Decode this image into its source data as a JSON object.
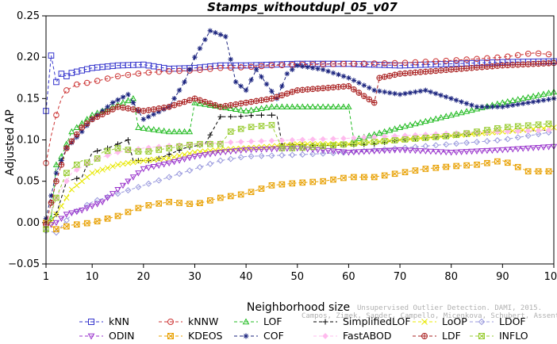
{
  "chart_data": {
    "type": "line",
    "title": "Stamps_withoutdupl_05_v07",
    "xlabel": "Neighborhood size",
    "ylabel": "Adjusted AP",
    "xlim": [
      1,
      100
    ],
    "ylim": [
      -0.05,
      0.25
    ],
    "x_ticks": [
      "1",
      "10",
      "20",
      "30",
      "40",
      "50",
      "60",
      "70",
      "80",
      "90",
      "100"
    ],
    "y_ticks": [
      "−0.05",
      "0.00",
      "0.05",
      "0.10",
      "0.15",
      "0.20",
      "0.25"
    ],
    "legend_position": "bottom",
    "watermark": [
      "Campos, Zimek, Sander, Campello, Micenkova, Schubert, Assent, Houle",
      "Unsupervised Outlier Detection. DAMI, 2015."
    ],
    "series": [
      {
        "name": "kNN",
        "color": "#3333cc",
        "marker": "square",
        "points": [
          [
            1,
            0.135
          ],
          [
            2,
            0.202
          ],
          [
            3,
            0.17
          ],
          [
            4,
            0.18
          ],
          [
            5,
            0.177
          ],
          [
            6,
            0.181
          ],
          [
            8,
            0.184
          ],
          [
            10,
            0.187
          ],
          [
            15,
            0.19
          ],
          [
            20,
            0.191
          ],
          [
            25,
            0.186
          ],
          [
            30,
            0.187
          ],
          [
            35,
            0.19
          ],
          [
            40,
            0.19
          ],
          [
            45,
            0.191
          ],
          [
            50,
            0.192
          ],
          [
            60,
            0.192
          ],
          [
            70,
            0.19
          ],
          [
            80,
            0.192
          ],
          [
            90,
            0.194
          ],
          [
            100,
            0.195
          ]
        ]
      },
      {
        "name": "kNNW",
        "color": "#cc3333",
        "marker": "circle",
        "points": [
          [
            1,
            0.072
          ],
          [
            2,
            0.105
          ],
          [
            3,
            0.13
          ],
          [
            4,
            0.15
          ],
          [
            5,
            0.16
          ],
          [
            7,
            0.167
          ],
          [
            10,
            0.17
          ],
          [
            15,
            0.177
          ],
          [
            20,
            0.181
          ],
          [
            25,
            0.183
          ],
          [
            30,
            0.184
          ],
          [
            35,
            0.187
          ],
          [
            40,
            0.188
          ],
          [
            45,
            0.19
          ],
          [
            50,
            0.191
          ],
          [
            60,
            0.192
          ],
          [
            70,
            0.193
          ],
          [
            80,
            0.196
          ],
          [
            90,
            0.2
          ],
          [
            96,
            0.205
          ],
          [
            100,
            0.203
          ]
        ]
      },
      {
        "name": "LOF",
        "color": "#22bb22",
        "marker": "triangle-up",
        "points": [
          [
            1,
            -0.003
          ],
          [
            2,
            0.005
          ],
          [
            3,
            0.07
          ],
          [
            4,
            0.08
          ],
          [
            6,
            0.11
          ],
          [
            8,
            0.12
          ],
          [
            10,
            0.13
          ],
          [
            14,
            0.14
          ],
          [
            18,
            0.15
          ],
          [
            19,
            0.115
          ],
          [
            25,
            0.11
          ],
          [
            29,
            0.11
          ],
          [
            30,
            0.145
          ],
          [
            35,
            0.14
          ],
          [
            40,
            0.135
          ],
          [
            45,
            0.14
          ],
          [
            50,
            0.14
          ],
          [
            60,
            0.14
          ],
          [
            61,
            0.1
          ],
          [
            70,
            0.115
          ],
          [
            80,
            0.13
          ],
          [
            90,
            0.145
          ],
          [
            100,
            0.158
          ]
        ]
      },
      {
        "name": "SimplifiedLOF",
        "color": "#000000",
        "marker": "plus",
        "points": [
          [
            1,
            -0.005
          ],
          [
            3,
            0.01
          ],
          [
            5,
            0.05
          ],
          [
            8,
            0.055
          ],
          [
            10,
            0.085
          ],
          [
            13,
            0.09
          ],
          [
            15,
            0.095
          ],
          [
            17,
            0.1
          ],
          [
            18,
            0.075
          ],
          [
            22,
            0.075
          ],
          [
            28,
            0.09
          ],
          [
            32,
            0.095
          ],
          [
            35,
            0.128
          ],
          [
            38,
            0.128
          ],
          [
            42,
            0.13
          ],
          [
            46,
            0.13
          ],
          [
            47,
            0.095
          ],
          [
            55,
            0.093
          ],
          [
            65,
            0.095
          ],
          [
            70,
            0.1
          ],
          [
            80,
            0.105
          ],
          [
            90,
            0.11
          ],
          [
            100,
            0.112
          ]
        ]
      },
      {
        "name": "LoOP",
        "color": "#e8e800",
        "marker": "x",
        "points": [
          [
            1,
            -0.008
          ],
          [
            3,
            0.01
          ],
          [
            6,
            0.04
          ],
          [
            10,
            0.06
          ],
          [
            15,
            0.07
          ],
          [
            20,
            0.075
          ],
          [
            25,
            0.078
          ],
          [
            30,
            0.085
          ],
          [
            35,
            0.088
          ],
          [
            40,
            0.09
          ],
          [
            45,
            0.092
          ],
          [
            50,
            0.095
          ],
          [
            60,
            0.095
          ],
          [
            70,
            0.1
          ],
          [
            80,
            0.105
          ],
          [
            90,
            0.11
          ],
          [
            100,
            0.115
          ]
        ]
      },
      {
        "name": "LDOF",
        "color": "#9999dd",
        "marker": "diamond",
        "points": [
          [
            1,
            -0.01
          ],
          [
            3,
            -0.012
          ],
          [
            6,
            0.01
          ],
          [
            10,
            0.025
          ],
          [
            15,
            0.035
          ],
          [
            20,
            0.045
          ],
          [
            25,
            0.055
          ],
          [
            30,
            0.065
          ],
          [
            35,
            0.075
          ],
          [
            40,
            0.08
          ],
          [
            50,
            0.082
          ],
          [
            60,
            0.085
          ],
          [
            70,
            0.09
          ],
          [
            80,
            0.095
          ],
          [
            90,
            0.1
          ],
          [
            100,
            0.11
          ]
        ]
      },
      {
        "name": "ODIN",
        "color": "#9933cc",
        "marker": "triangle-down",
        "points": [
          [
            1,
            -0.005
          ],
          [
            3,
            0.0
          ],
          [
            5,
            0.01
          ],
          [
            8,
            0.015
          ],
          [
            10,
            0.02
          ],
          [
            12,
            0.025
          ],
          [
            15,
            0.04
          ],
          [
            18,
            0.055
          ],
          [
            20,
            0.065
          ],
          [
            25,
            0.072
          ],
          [
            30,
            0.08
          ],
          [
            35,
            0.085
          ],
          [
            40,
            0.088
          ],
          [
            50,
            0.09
          ],
          [
            60,
            0.085
          ],
          [
            70,
            0.088
          ],
          [
            80,
            0.085
          ],
          [
            90,
            0.088
          ],
          [
            100,
            0.092
          ]
        ]
      },
      {
        "name": "KDEOS",
        "color": "#e8a000",
        "marker": "square-x",
        "points": [
          [
            1,
            0.0
          ],
          [
            3,
            -0.008
          ],
          [
            6,
            -0.003
          ],
          [
            10,
            0.0
          ],
          [
            15,
            0.008
          ],
          [
            20,
            0.02
          ],
          [
            25,
            0.025
          ],
          [
            30,
            0.022
          ],
          [
            35,
            0.03
          ],
          [
            40,
            0.035
          ],
          [
            45,
            0.045
          ],
          [
            50,
            0.048
          ],
          [
            55,
            0.05
          ],
          [
            60,
            0.055
          ],
          [
            65,
            0.055
          ],
          [
            70,
            0.06
          ],
          [
            75,
            0.065
          ],
          [
            80,
            0.068
          ],
          [
            85,
            0.07
          ],
          [
            90,
            0.075
          ],
          [
            95,
            0.062
          ],
          [
            100,
            0.062
          ]
        ]
      },
      {
        "name": "COF",
        "color": "#1a237e",
        "marker": "asterisk",
        "points": [
          [
            1,
            0.005
          ],
          [
            3,
            0.06
          ],
          [
            5,
            0.09
          ],
          [
            8,
            0.11
          ],
          [
            10,
            0.125
          ],
          [
            14,
            0.145
          ],
          [
            17,
            0.155
          ],
          [
            20,
            0.125
          ],
          [
            25,
            0.14
          ],
          [
            28,
            0.17
          ],
          [
            30,
            0.2
          ],
          [
            33,
            0.232
          ],
          [
            36,
            0.225
          ],
          [
            38,
            0.17
          ],
          [
            40,
            0.16
          ],
          [
            42,
            0.185
          ],
          [
            46,
            0.15
          ],
          [
            48,
            0.18
          ],
          [
            50,
            0.19
          ],
          [
            55,
            0.185
          ],
          [
            60,
            0.175
          ],
          [
            65,
            0.16
          ],
          [
            70,
            0.155
          ],
          [
            75,
            0.16
          ],
          [
            80,
            0.15
          ],
          [
            85,
            0.14
          ],
          [
            90,
            0.14
          ],
          [
            100,
            0.15
          ]
        ]
      },
      {
        "name": "FastABOD",
        "color": "#ffbbee",
        "marker": "diamond-filled",
        "points": [
          [
            1,
            -0.003
          ],
          [
            3,
            0.03
          ],
          [
            6,
            0.06
          ],
          [
            10,
            0.075
          ],
          [
            15,
            0.085
          ],
          [
            20,
            0.09
          ],
          [
            25,
            0.093
          ],
          [
            30,
            0.095
          ],
          [
            40,
            0.098
          ],
          [
            50,
            0.1
          ],
          [
            60,
            0.102
          ],
          [
            70,
            0.105
          ],
          [
            80,
            0.108
          ],
          [
            90,
            0.11
          ],
          [
            100,
            0.112
          ]
        ]
      },
      {
        "name": "LDF",
        "color": "#aa2222",
        "marker": "circle-plus",
        "points": [
          [
            1,
            -0.002
          ],
          [
            3,
            0.05
          ],
          [
            5,
            0.09
          ],
          [
            8,
            0.115
          ],
          [
            10,
            0.125
          ],
          [
            15,
            0.14
          ],
          [
            20,
            0.135
          ],
          [
            25,
            0.14
          ],
          [
            30,
            0.15
          ],
          [
            35,
            0.14
          ],
          [
            40,
            0.145
          ],
          [
            45,
            0.15
          ],
          [
            50,
            0.16
          ],
          [
            60,
            0.165
          ],
          [
            65,
            0.145
          ],
          [
            66,
            0.175
          ],
          [
            70,
            0.18
          ],
          [
            80,
            0.185
          ],
          [
            90,
            0.19
          ],
          [
            100,
            0.193
          ]
        ]
      },
      {
        "name": "INFLO",
        "color": "#99cc33",
        "marker": "square-x",
        "points": [
          [
            1,
            -0.008
          ],
          [
            3,
            0.03
          ],
          [
            5,
            0.06
          ],
          [
            8,
            0.075
          ],
          [
            10,
            0.07
          ],
          [
            12,
            0.085
          ],
          [
            15,
            0.09
          ],
          [
            20,
            0.085
          ],
          [
            25,
            0.09
          ],
          [
            30,
            0.095
          ],
          [
            35,
            0.095
          ],
          [
            37,
            0.11
          ],
          [
            40,
            0.115
          ],
          [
            45,
            0.118
          ],
          [
            47,
            0.09
          ],
          [
            50,
            0.09
          ],
          [
            60,
            0.095
          ],
          [
            70,
            0.1
          ],
          [
            80,
            0.105
          ],
          [
            90,
            0.115
          ],
          [
            100,
            0.12
          ]
        ]
      }
    ]
  }
}
